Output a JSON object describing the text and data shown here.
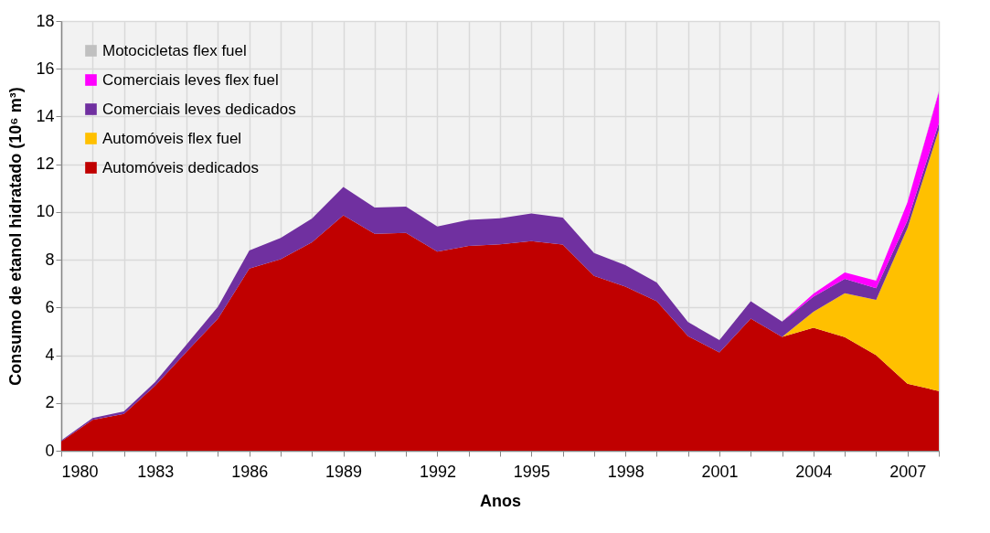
{
  "chart_data": {
    "type": "area",
    "stacked": true,
    "xlabel": "Anos",
    "ylabel": "Consumo de etanol hidratado (10⁶ m³)",
    "x": [
      1980,
      1981,
      1982,
      1983,
      1984,
      1985,
      1986,
      1987,
      1988,
      1989,
      1990,
      1991,
      1992,
      1993,
      1994,
      1995,
      1996,
      1997,
      1998,
      1999,
      2000,
      2001,
      2002,
      2003,
      2004,
      2005,
      2006,
      2007,
      2008
    ],
    "series": [
      {
        "name": "Automóveis dedicados",
        "color": "#c00000",
        "values": [
          0.39,
          1.29,
          1.54,
          2.73,
          4.15,
          5.53,
          7.63,
          8.02,
          8.73,
          9.86,
          9.09,
          9.12,
          8.34,
          8.58,
          8.65,
          8.78,
          8.64,
          7.32,
          6.87,
          6.26,
          4.8,
          4.12,
          5.53,
          4.77,
          5.15,
          4.76,
          4.0,
          2.81,
          2.5
        ]
      },
      {
        "name": "Automóveis flex fuel",
        "color": "#ffc000",
        "values": [
          0,
          0,
          0,
          0,
          0,
          0,
          0,
          0,
          0,
          0,
          0,
          0,
          0,
          0,
          0,
          0,
          0,
          0,
          0,
          0,
          0,
          0,
          0,
          0,
          0.67,
          1.84,
          2.32,
          6.52,
          10.93
        ]
      },
      {
        "name": "Comerciais leves dedicados",
        "color": "#7030a0",
        "values": [
          0.04,
          0.08,
          0.11,
          0.15,
          0.3,
          0.5,
          0.76,
          0.89,
          1.0,
          1.19,
          1.1,
          1.11,
          1.05,
          1.09,
          1.09,
          1.16,
          1.13,
          0.96,
          0.9,
          0.79,
          0.59,
          0.51,
          0.73,
          0.64,
          0.63,
          0.6,
          0.49,
          0.31,
          0.29
        ]
      },
      {
        "name": "Comerciais leves flex fuel",
        "color": "#ff00ff",
        "values": [
          0,
          0,
          0,
          0,
          0,
          0,
          0,
          0,
          0,
          0,
          0,
          0,
          0,
          0,
          0,
          0,
          0,
          0,
          0,
          0,
          0,
          0,
          0,
          0,
          0.13,
          0.27,
          0.31,
          0.77,
          1.31
        ]
      },
      {
        "name": "Motocicletas flex fuel",
        "color": "#c0c0c0",
        "values": [
          0,
          0,
          0,
          0,
          0,
          0,
          0,
          0,
          0,
          0,
          0,
          0,
          0,
          0,
          0,
          0,
          0,
          0,
          0,
          0,
          0,
          0,
          0,
          0,
          0,
          0,
          0,
          0,
          0.05
        ]
      }
    ],
    "xlim": [
      1980,
      2008
    ],
    "xticks": [
      1980,
      {
        "value": 1981,
        "label": null
      },
      {
        "value": 1982,
        "label": null
      },
      1983,
      {
        "value": 1984,
        "label": null
      },
      {
        "value": 1985,
        "label": null
      },
      1986,
      {
        "value": 1987,
        "label": null
      },
      {
        "value": 1988,
        "label": null
      },
      1989,
      {
        "value": 1990,
        "label": null
      },
      {
        "value": 1991,
        "label": null
      },
      1992,
      {
        "value": 1993,
        "label": null
      },
      {
        "value": 1994,
        "label": null
      },
      1995,
      {
        "value": 1996,
        "label": null
      },
      {
        "value": 1997,
        "label": null
      },
      1998,
      {
        "value": 1999,
        "label": null
      },
      {
        "value": 2000,
        "label": null
      },
      2001,
      {
        "value": 2002,
        "label": null
      },
      {
        "value": 2003,
        "label": null
      },
      2004,
      {
        "value": 2005,
        "label": null
      },
      {
        "value": 2006,
        "label": null
      },
      2007,
      {
        "value": 2008,
        "label": null
      }
    ],
    "ylim": [
      0,
      18
    ],
    "yticks": [
      0,
      2,
      4,
      6,
      8,
      10,
      12,
      14,
      16,
      18
    ],
    "grid": true,
    "legend": "top left"
  }
}
